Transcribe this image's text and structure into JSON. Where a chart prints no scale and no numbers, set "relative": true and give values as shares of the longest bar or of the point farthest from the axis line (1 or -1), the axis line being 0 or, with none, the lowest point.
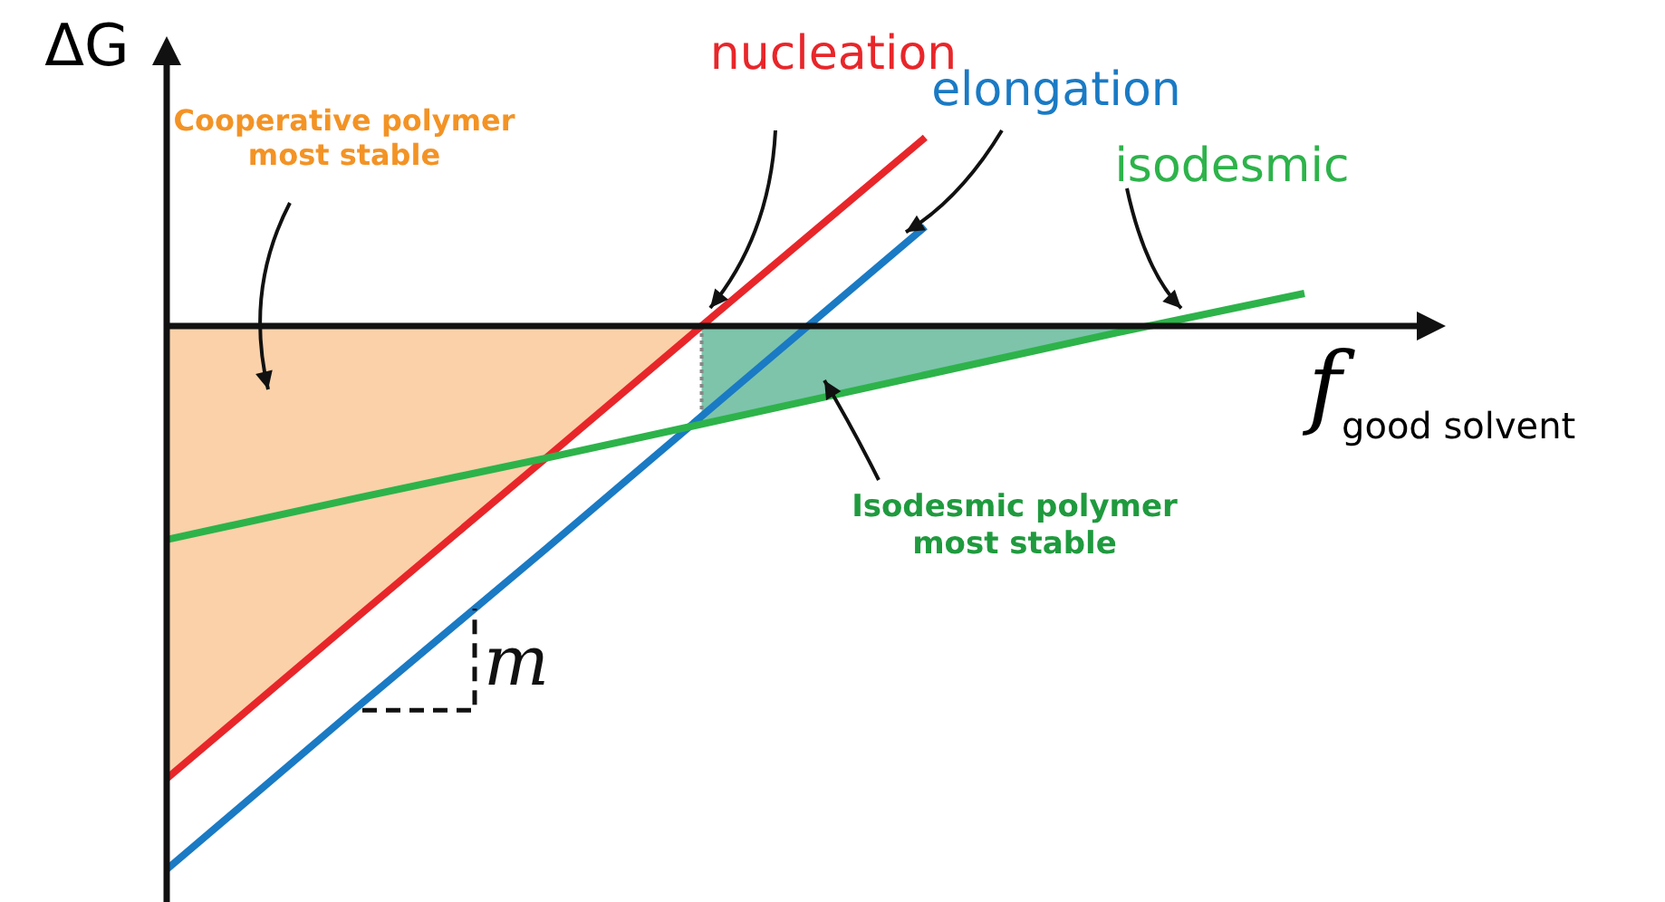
{
  "chart_data": {
    "type": "line",
    "relative": true,
    "xlabel": "f$_{good solvent}$",
    "ylabel": "ΔG",
    "categories": [
      null,
      null,
      null,
      null,
      null,
      null,
      null
    ],
    "series": [
      {
        "name": "nucleation",
        "color": "#e8262a",
        "values": [
          -0.833,
          -0.537,
          -0.243,
          0.053,
          0.347,
          null,
          null
        ]
      },
      {
        "name": "elongation",
        "color": "#1a7ac4",
        "values": [
          -1,
          -0.703,
          -0.41,
          -0.113,
          0.183,
          null,
          null
        ]
      },
      {
        "name": "isodesmic",
        "color": "#2db34a",
        "values": [
          -0.393,
          -0.317,
          -0.243,
          -0.167,
          -0.09,
          -0.013,
          0.06
        ]
      }
    ],
    "annotations": [
      "Cooperative polymer most stable",
      "Isodesmic polymer most stable",
      "m"
    ]
  }
}
